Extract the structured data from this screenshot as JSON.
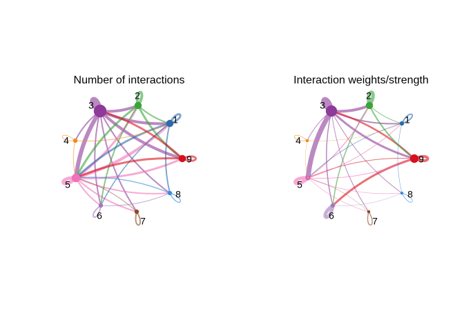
{
  "panels": [
    {
      "title": "Number of interactions",
      "nodes": [
        {
          "id": "1",
          "label": "1",
          "color": "#2b6aac",
          "size": 5
        },
        {
          "id": "2",
          "label": "2",
          "color": "#3aa33a",
          "size": 5
        },
        {
          "id": "3",
          "label": "3",
          "color": "#8d3a99",
          "size": 9
        },
        {
          "id": "4",
          "label": "4",
          "color": "#f08a1c",
          "size": 3
        },
        {
          "id": "5",
          "label": "5",
          "color": "#f072b8",
          "size": 6
        },
        {
          "id": "6",
          "label": "6",
          "color": "#a27ab8",
          "size": 3
        },
        {
          "id": "7",
          "label": "7",
          "color": "#8c4a24",
          "size": 3
        },
        {
          "id": "8",
          "label": "8",
          "color": "#3a8fd8",
          "size": 3
        },
        {
          "id": "9",
          "label": "9",
          "color": "#d8101e",
          "size": 5
        }
      ],
      "edges": [
        {
          "from": "3",
          "to": "3",
          "w": 7
        },
        {
          "from": "2",
          "to": "2",
          "w": 4
        },
        {
          "from": "1",
          "to": "1",
          "w": 3
        },
        {
          "from": "4",
          "to": "4",
          "w": 1
        },
        {
          "from": "5",
          "to": "5",
          "w": 5
        },
        {
          "from": "6",
          "to": "6",
          "w": 2
        },
        {
          "from": "7",
          "to": "7",
          "w": 2
        },
        {
          "from": "8",
          "to": "8",
          "w": 1.5
        },
        {
          "from": "9",
          "to": "9",
          "w": 3
        },
        {
          "from": "3",
          "to": "1",
          "w": 4
        },
        {
          "from": "3",
          "to": "2",
          "w": 4
        },
        {
          "from": "3",
          "to": "5",
          "w": 6
        },
        {
          "from": "3",
          "to": "9",
          "w": 4
        },
        {
          "from": "3",
          "to": "8",
          "w": 2
        },
        {
          "from": "3",
          "to": "6",
          "w": 2
        },
        {
          "from": "3",
          "to": "7",
          "w": 2
        },
        {
          "from": "3",
          "to": "4",
          "w": 2
        },
        {
          "from": "5",
          "to": "1",
          "w": 4
        },
        {
          "from": "5",
          "to": "9",
          "w": 3
        },
        {
          "from": "5",
          "to": "2",
          "w": 3
        },
        {
          "from": "5",
          "to": "8",
          "w": 2
        },
        {
          "from": "5",
          "to": "7",
          "w": 2
        },
        {
          "from": "5",
          "to": "6",
          "w": 2
        },
        {
          "from": "2",
          "to": "9",
          "w": 3
        },
        {
          "from": "2",
          "to": "6",
          "w": 2
        },
        {
          "from": "2",
          "to": "1",
          "w": 2
        },
        {
          "from": "2",
          "to": "5",
          "w": 3
        },
        {
          "from": "1",
          "to": "5",
          "w": 3
        },
        {
          "from": "1",
          "to": "8",
          "w": 2
        },
        {
          "from": "1",
          "to": "6",
          "w": 1.5
        },
        {
          "from": "9",
          "to": "5",
          "w": 3
        },
        {
          "from": "9",
          "to": "3",
          "w": 3
        },
        {
          "from": "4",
          "to": "1",
          "w": 1
        },
        {
          "from": "4",
          "to": "5",
          "w": 1
        },
        {
          "from": "8",
          "to": "5",
          "w": 1.5
        },
        {
          "from": "6",
          "to": "8",
          "w": 1
        },
        {
          "from": "7",
          "to": "5",
          "w": 1
        }
      ]
    },
    {
      "title": "Interaction weights/strength",
      "nodes": [
        {
          "id": "1",
          "label": "1",
          "color": "#2b6aac",
          "size": 3
        },
        {
          "id": "2",
          "label": "2",
          "color": "#3aa33a",
          "size": 5
        },
        {
          "id": "3",
          "label": "3",
          "color": "#8d3a99",
          "size": 8
        },
        {
          "id": "4",
          "label": "4",
          "color": "#f08a1c",
          "size": 2
        },
        {
          "id": "5",
          "label": "5",
          "color": "#f072b8",
          "size": 2
        },
        {
          "id": "6",
          "label": "6",
          "color": "#a27ab8",
          "size": 3
        },
        {
          "id": "7",
          "label": "7",
          "color": "#8c4a24",
          "size": 2
        },
        {
          "id": "8",
          "label": "8",
          "color": "#3a8fd8",
          "size": 2
        },
        {
          "id": "9",
          "label": "9",
          "color": "#d8101e",
          "size": 6
        }
      ],
      "edges": [
        {
          "from": "3",
          "to": "3",
          "w": 7
        },
        {
          "from": "2",
          "to": "2",
          "w": 5
        },
        {
          "from": "1",
          "to": "1",
          "w": 2
        },
        {
          "from": "4",
          "to": "4",
          "w": 1
        },
        {
          "from": "5",
          "to": "5",
          "w": 5
        },
        {
          "from": "6",
          "to": "6",
          "w": 5
        },
        {
          "from": "7",
          "to": "7",
          "w": 1.5
        },
        {
          "from": "8",
          "to": "8",
          "w": 1
        },
        {
          "from": "9",
          "to": "9",
          "w": 4
        },
        {
          "from": "3",
          "to": "5",
          "w": 7
        },
        {
          "from": "3",
          "to": "2",
          "w": 4
        },
        {
          "from": "3",
          "to": "9",
          "w": 3
        },
        {
          "from": "3",
          "to": "1",
          "w": 2
        },
        {
          "from": "3",
          "to": "6",
          "w": 1.5
        },
        {
          "from": "3",
          "to": "4",
          "w": 1
        },
        {
          "from": "3",
          "to": "8",
          "w": 1
        },
        {
          "from": "3",
          "to": "7",
          "w": 1
        },
        {
          "from": "9",
          "to": "6",
          "w": 3
        },
        {
          "from": "9",
          "to": "3",
          "w": 2.5
        },
        {
          "from": "9",
          "to": "5",
          "w": 1
        },
        {
          "from": "2",
          "to": "9",
          "w": 2
        },
        {
          "from": "2",
          "to": "6",
          "w": 1.5
        },
        {
          "from": "2",
          "to": "1",
          "w": 1
        },
        {
          "from": "5",
          "to": "2",
          "w": 1.5
        },
        {
          "from": "5",
          "to": "1",
          "w": 1
        },
        {
          "from": "5",
          "to": "8",
          "w": 0.7
        },
        {
          "from": "5",
          "to": "7",
          "w": 0.7
        },
        {
          "from": "5",
          "to": "9",
          "w": 1
        },
        {
          "from": "1",
          "to": "5",
          "w": 0.8
        },
        {
          "from": "1",
          "to": "8",
          "w": 0.6
        },
        {
          "from": "4",
          "to": "1",
          "w": 0.5
        },
        {
          "from": "4",
          "to": "5",
          "w": 0.5
        },
        {
          "from": "6",
          "to": "8",
          "w": 0.5
        },
        {
          "from": "7",
          "to": "5",
          "w": 0.5
        }
      ]
    }
  ]
}
